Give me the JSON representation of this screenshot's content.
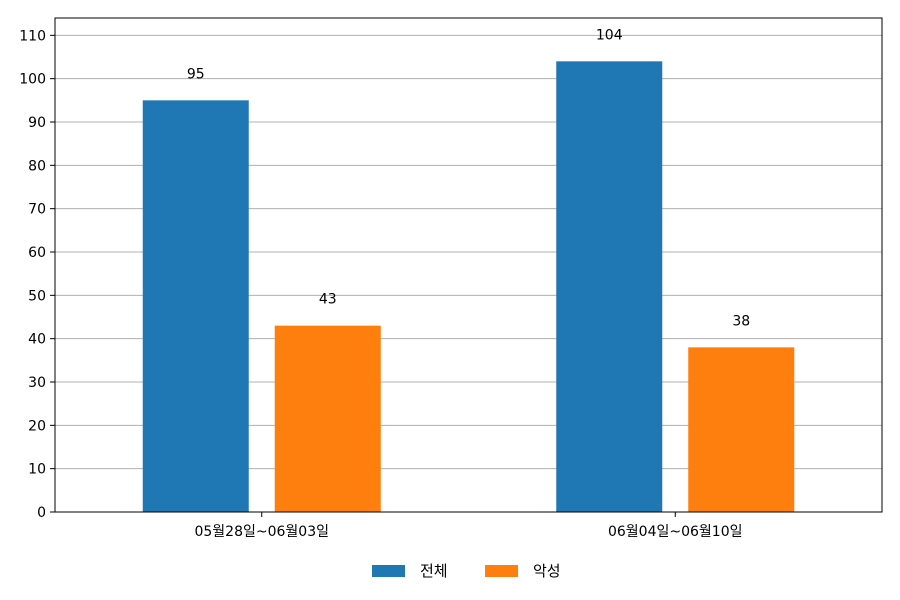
{
  "chart_data": {
    "type": "bar",
    "categories": [
      "05월28일~06월03일",
      "06월04일~06월10일"
    ],
    "series": [
      {
        "name": "전체",
        "values": [
          95,
          104
        ],
        "color": "#1f77b4"
      },
      {
        "name": "악성",
        "values": [
          43,
          38
        ],
        "color": "#ff7f0e"
      }
    ],
    "ylim": [
      0,
      114
    ],
    "yticks": [
      0,
      10,
      20,
      30,
      40,
      50,
      60,
      70,
      80,
      90,
      100,
      110
    ],
    "grid": true,
    "grid_color": "#b0b0b0",
    "legend_position": "bottom-center",
    "data_labels": true
  }
}
